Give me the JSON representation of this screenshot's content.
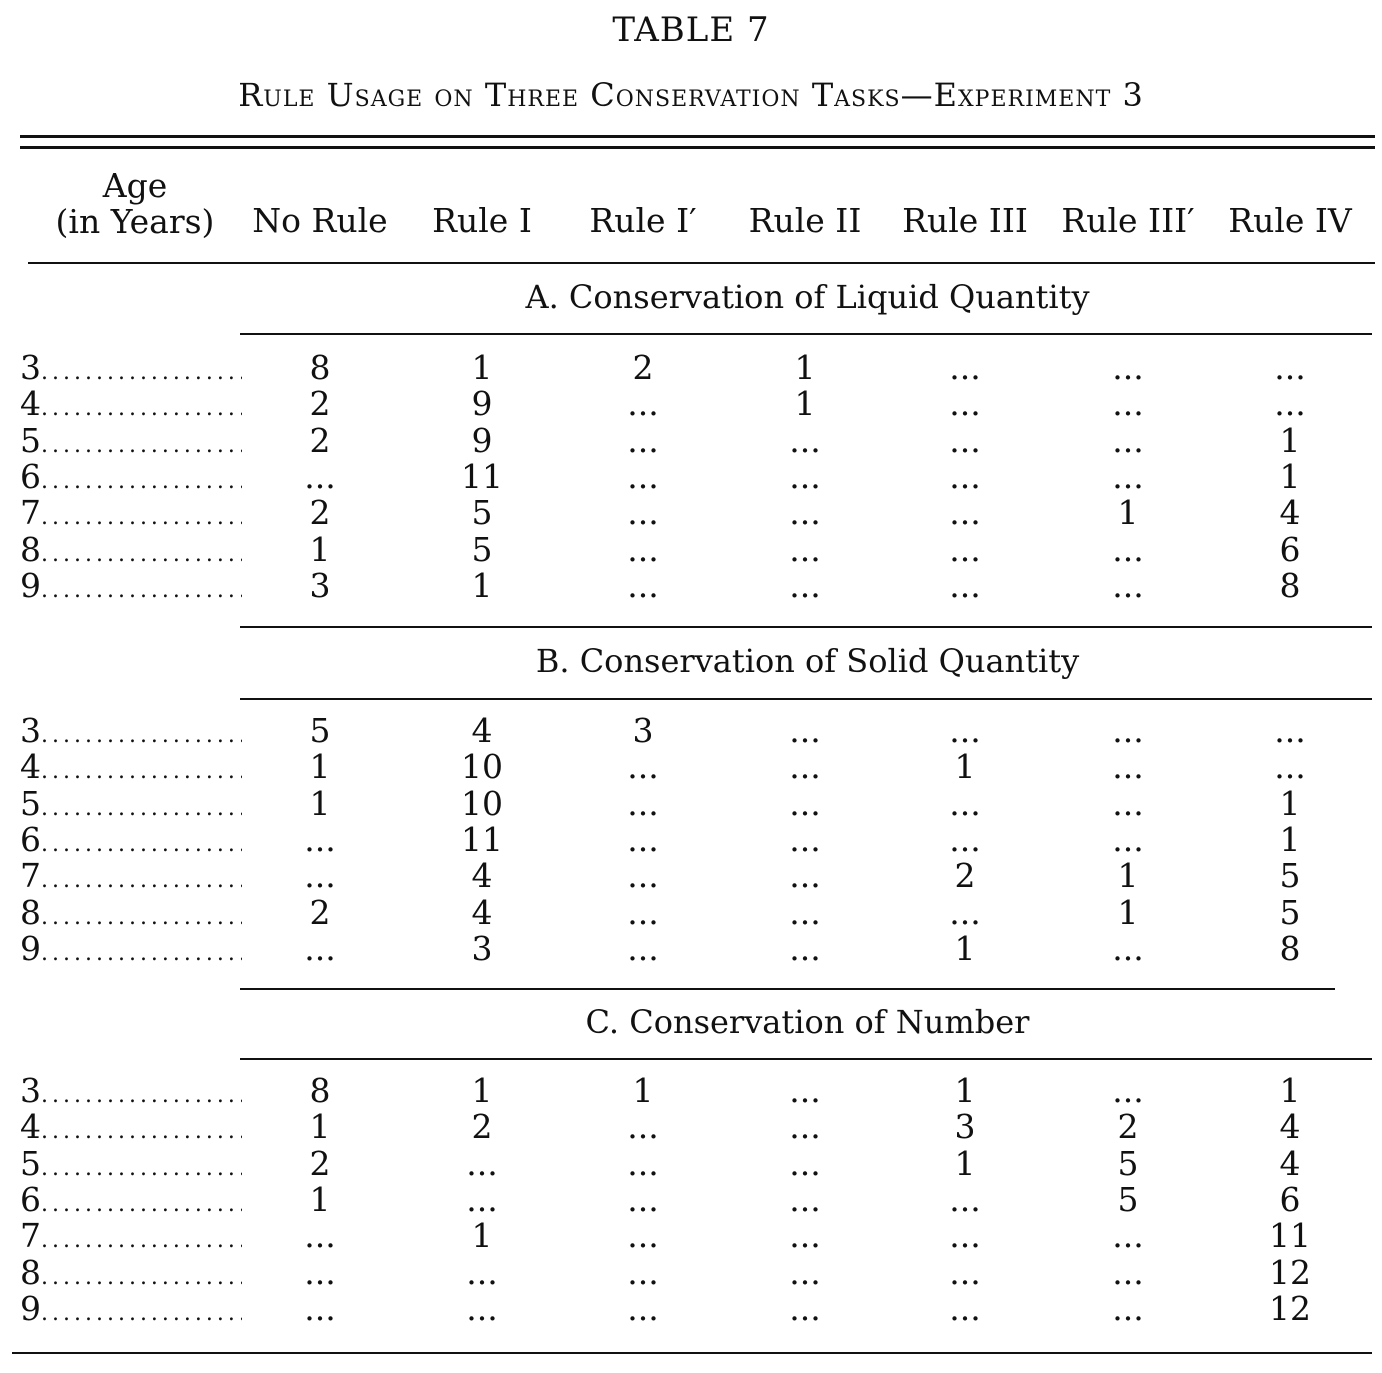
{
  "table": {
    "title": "TABLE 7",
    "subtitle": "Rule Usage on Three Conservation Tasks—Experiment 3",
    "headers": {
      "age_line1": "Age",
      "age_line2": "(in Years)",
      "columns": [
        "No Rule",
        "Rule I",
        "Rule I′",
        "Rule II",
        "Rule III",
        "Rule III′",
        "Rule IV"
      ]
    },
    "sections": [
      {
        "title": "A. Conservation of Liquid Quantity",
        "rows": [
          {
            "age": "3",
            "cells": [
              "8",
              "1",
              "2",
              "1",
              "...",
              "...",
              "..."
            ]
          },
          {
            "age": "4",
            "cells": [
              "2",
              "9",
              "...",
              "1",
              "...",
              "...",
              "..."
            ]
          },
          {
            "age": "5",
            "cells": [
              "2",
              "9",
              "...",
              "...",
              "...",
              "...",
              "1"
            ]
          },
          {
            "age": "6",
            "cells": [
              "...",
              "11",
              "...",
              "...",
              "...",
              "...",
              "1"
            ]
          },
          {
            "age": "7",
            "cells": [
              "2",
              "5",
              "...",
              "...",
              "...",
              "1",
              "4"
            ]
          },
          {
            "age": "8",
            "cells": [
              "1",
              "5",
              "...",
              "...",
              "...",
              "...",
              "6"
            ]
          },
          {
            "age": "9",
            "cells": [
              "3",
              "1",
              "...",
              "...",
              "...",
              "...",
              "8"
            ]
          }
        ]
      },
      {
        "title": "B. Conservation of Solid Quantity",
        "rows": [
          {
            "age": "3",
            "cells": [
              "5",
              "4",
              "3",
              "...",
              "...",
              "...",
              "..."
            ]
          },
          {
            "age": "4",
            "cells": [
              "1",
              "10",
              "...",
              "...",
              "1",
              "...",
              "..."
            ]
          },
          {
            "age": "5",
            "cells": [
              "1",
              "10",
              "...",
              "...",
              "...",
              "...",
              "1"
            ]
          },
          {
            "age": "6",
            "cells": [
              "...",
              "11",
              "...",
              "...",
              "...",
              "...",
              "1"
            ]
          },
          {
            "age": "7",
            "cells": [
              "...",
              "4",
              "...",
              "...",
              "2",
              "1",
              "5"
            ]
          },
          {
            "age": "8",
            "cells": [
              "2",
              "4",
              "...",
              "...",
              "...",
              "1",
              "5"
            ]
          },
          {
            "age": "9",
            "cells": [
              "...",
              "3",
              "...",
              "...",
              "1",
              "...",
              "8"
            ]
          }
        ]
      },
      {
        "title": "C. Conservation of Number",
        "rows": [
          {
            "age": "3",
            "cells": [
              "8",
              "1",
              "1",
              "...",
              "1",
              "...",
              "1"
            ]
          },
          {
            "age": "4",
            "cells": [
              "1",
              "2",
              "...",
              "...",
              "3",
              "2",
              "4"
            ]
          },
          {
            "age": "5",
            "cells": [
              "2",
              "...",
              "...",
              "...",
              "1",
              "5",
              "4"
            ]
          },
          {
            "age": "6",
            "cells": [
              "1",
              "...",
              "...",
              "...",
              "...",
              "5",
              "6"
            ]
          },
          {
            "age": "7",
            "cells": [
              "...",
              "1",
              "...",
              "...",
              "...",
              "...",
              "11"
            ]
          },
          {
            "age": "8",
            "cells": [
              "...",
              "...",
              "...",
              "...",
              "...",
              "...",
              "12"
            ]
          },
          {
            "age": "9",
            "cells": [
              "...",
              "...",
              "...",
              "...",
              "...",
              "...",
              "12"
            ]
          }
        ]
      }
    ]
  }
}
